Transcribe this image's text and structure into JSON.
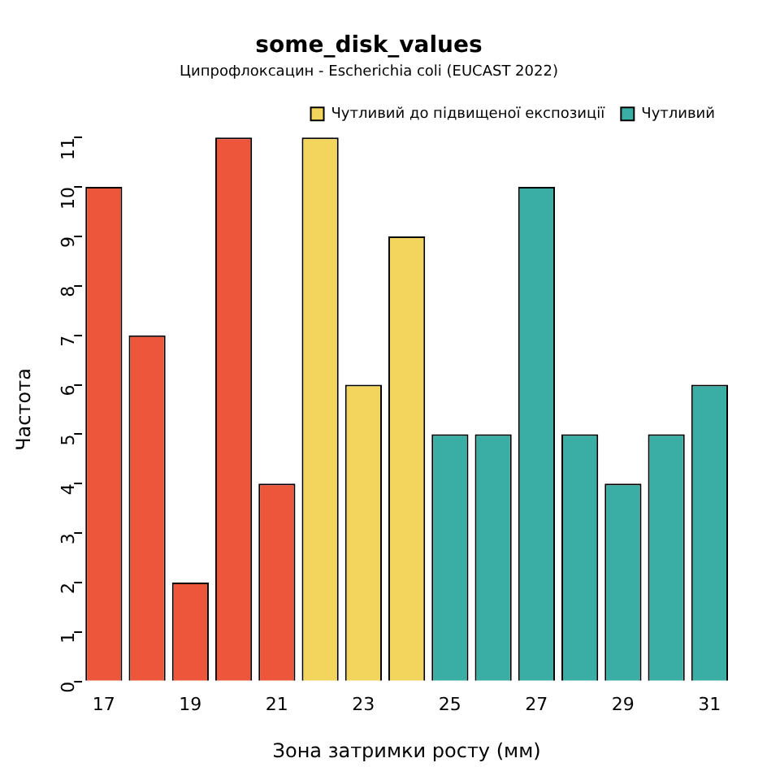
{
  "chart_data": {
    "type": "bar",
    "title": "some_disk_values",
    "subtitle": "Ципрофлоксацин - Escherichia coli (EUCAST 2022)",
    "xlabel": "Зона затримки росту (мм)",
    "ylabel": "Частота",
    "categories": [
      "17",
      null,
      "19",
      null,
      "21",
      null,
      "23",
      null,
      "25",
      null,
      "27",
      null,
      "29",
      null,
      "31"
    ],
    "series": [
      {
        "color": "#ee563b",
        "values": [
          10,
          7,
          2,
          11,
          4,
          null,
          null,
          null,
          null,
          null,
          null,
          null,
          null,
          null,
          null
        ]
      },
      {
        "name": "Чутливий до підвищеної експозиції",
        "color": "#f3d45c",
        "values": [
          null,
          null,
          null,
          null,
          null,
          11,
          6,
          9,
          null,
          null,
          null,
          null,
          null,
          null,
          null
        ]
      },
      {
        "name": "Чутливий",
        "color": "#3aada4",
        "values": [
          null,
          null,
          null,
          null,
          null,
          null,
          null,
          null,
          5,
          5,
          10,
          5,
          4,
          5,
          6
        ]
      }
    ],
    "ylim": [
      0,
      11
    ],
    "yticks": [
      0,
      1,
      2,
      3,
      4,
      5,
      6,
      7,
      8,
      9,
      10,
      11
    ],
    "grid": false,
    "legend": "top right"
  }
}
